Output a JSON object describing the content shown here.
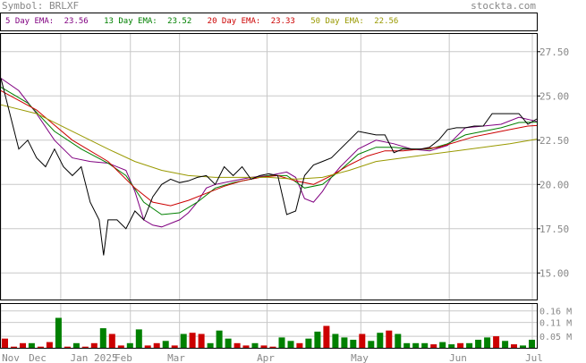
{
  "header": {
    "symbol_label": "Symbol:",
    "symbol": "BRLXF",
    "site": "stockta.com"
  },
  "legend": [
    {
      "label": "5 Day EMA:",
      "value": "23.56",
      "color": "#800080"
    },
    {
      "label": "13 Day EMA:",
      "value": "23.52",
      "color": "#008000"
    },
    {
      "label": "20 Day EMA:",
      "value": "23.33",
      "color": "#cc0000"
    },
    {
      "label": "50 Day EMA:",
      "value": "22.56",
      "color": "#999900"
    }
  ],
  "chart_data": {
    "type": "line",
    "price_axis": {
      "ylim": [
        13.5,
        28.5
      ],
      "ticks": [
        "27.50",
        "25.00",
        "22.50",
        "20.00",
        "17.50",
        "15.00"
      ]
    },
    "volume_axis": {
      "ylim": [
        0,
        0.19
      ],
      "ticks": [
        "0.16 M",
        "0.11 M",
        "0.05 M"
      ]
    },
    "x_labels": [
      "Nov",
      "Dec",
      "Jan 2025",
      "Feb",
      "Mar",
      "Apr",
      "May",
      "Jun",
      "Jul"
    ],
    "grid": true,
    "series": [
      {
        "name": "5 Day EMA",
        "color": "#800080",
        "points": [
          [
            0,
            26
          ],
          [
            2,
            25.3
          ],
          [
            4,
            24
          ],
          [
            6,
            22.5
          ],
          [
            8,
            21.5
          ],
          [
            10,
            21.3
          ],
          [
            12,
            21.2
          ],
          [
            14,
            20.8
          ],
          [
            15,
            19.6
          ],
          [
            16,
            18
          ],
          [
            17,
            17.7
          ],
          [
            18,
            17.6
          ],
          [
            19,
            17.8
          ],
          [
            20,
            18
          ],
          [
            21,
            18.4
          ],
          [
            22,
            19
          ],
          [
            23,
            19.8
          ],
          [
            24,
            20
          ],
          [
            26,
            20.2
          ],
          [
            28,
            20.4
          ],
          [
            30,
            20.5
          ],
          [
            32,
            20.7
          ],
          [
            33,
            20.4
          ],
          [
            34,
            19.2
          ],
          [
            35,
            19
          ],
          [
            36,
            19.6
          ],
          [
            37,
            20.4
          ],
          [
            38,
            21
          ],
          [
            40,
            22
          ],
          [
            42,
            22.5
          ],
          [
            44,
            22.3
          ],
          [
            46,
            22
          ],
          [
            48,
            21.9
          ],
          [
            50,
            22.2
          ],
          [
            52,
            23.2
          ],
          [
            54,
            23.3
          ],
          [
            56,
            23.4
          ],
          [
            58,
            23.8
          ],
          [
            60,
            23.56
          ]
        ]
      },
      {
        "name": "13 Day EMA",
        "color": "#008000",
        "points": [
          [
            0,
            25.5
          ],
          [
            3,
            24.6
          ],
          [
            6,
            23
          ],
          [
            9,
            22
          ],
          [
            12,
            21.2
          ],
          [
            14,
            20.5
          ],
          [
            16,
            19
          ],
          [
            18,
            18.3
          ],
          [
            20,
            18.4
          ],
          [
            22,
            19
          ],
          [
            24,
            19.8
          ],
          [
            26,
            20.1
          ],
          [
            28,
            20.3
          ],
          [
            30,
            20.5
          ],
          [
            32,
            20.5
          ],
          [
            34,
            19.8
          ],
          [
            36,
            20
          ],
          [
            38,
            20.8
          ],
          [
            40,
            21.7
          ],
          [
            42,
            22.1
          ],
          [
            44,
            22.1
          ],
          [
            46,
            22
          ],
          [
            48,
            22
          ],
          [
            50,
            22.3
          ],
          [
            52,
            22.8
          ],
          [
            54,
            23
          ],
          [
            56,
            23.2
          ],
          [
            58,
            23.5
          ],
          [
            60,
            23.52
          ]
        ]
      },
      {
        "name": "20 Day EMA",
        "color": "#cc0000",
        "points": [
          [
            0,
            25.3
          ],
          [
            4,
            24.2
          ],
          [
            8,
            22.5
          ],
          [
            12,
            21.3
          ],
          [
            15,
            19.8
          ],
          [
            17,
            19
          ],
          [
            19,
            18.8
          ],
          [
            21,
            19.1
          ],
          [
            23,
            19.5
          ],
          [
            25,
            19.9
          ],
          [
            27,
            20.2
          ],
          [
            29,
            20.4
          ],
          [
            31,
            20.5
          ],
          [
            33,
            20.2
          ],
          [
            35,
            20
          ],
          [
            37,
            20.5
          ],
          [
            39,
            21.1
          ],
          [
            41,
            21.6
          ],
          [
            43,
            21.9
          ],
          [
            45,
            21.9
          ],
          [
            47,
            22
          ],
          [
            49,
            22.1
          ],
          [
            51,
            22.4
          ],
          [
            53,
            22.7
          ],
          [
            55,
            22.9
          ],
          [
            57,
            23.1
          ],
          [
            59,
            23.3
          ],
          [
            60,
            23.33
          ]
        ]
      },
      {
        "name": "50 Day EMA",
        "color": "#999900",
        "points": [
          [
            0,
            24.5
          ],
          [
            4,
            24
          ],
          [
            8,
            23
          ],
          [
            12,
            22
          ],
          [
            15,
            21.3
          ],
          [
            18,
            20.8
          ],
          [
            21,
            20.5
          ],
          [
            24,
            20.4
          ],
          [
            27,
            20.4
          ],
          [
            30,
            20.4
          ],
          [
            33,
            20.3
          ],
          [
            36,
            20.4
          ],
          [
            39,
            20.8
          ],
          [
            42,
            21.3
          ],
          [
            45,
            21.5
          ],
          [
            48,
            21.7
          ],
          [
            51,
            21.9
          ],
          [
            54,
            22.1
          ],
          [
            57,
            22.3
          ],
          [
            60,
            22.56
          ]
        ]
      },
      {
        "name": "Price",
        "color": "#000000",
        "points": [
          [
            0,
            26
          ],
          [
            1,
            24
          ],
          [
            2,
            22
          ],
          [
            3,
            22.5
          ],
          [
            4,
            21.5
          ],
          [
            5,
            21
          ],
          [
            6,
            22
          ],
          [
            7,
            21
          ],
          [
            8,
            20.5
          ],
          [
            9,
            21
          ],
          [
            10,
            19
          ],
          [
            11,
            18
          ],
          [
            11.5,
            16
          ],
          [
            12,
            18
          ],
          [
            13,
            18
          ],
          [
            14,
            17.5
          ],
          [
            15,
            18.5
          ],
          [
            16,
            18
          ],
          [
            17,
            19.3
          ],
          [
            18,
            20
          ],
          [
            19,
            20.3
          ],
          [
            20,
            20.1
          ],
          [
            21,
            20.2
          ],
          [
            22,
            20.4
          ],
          [
            23,
            20.5
          ],
          [
            24,
            20
          ],
          [
            25,
            21
          ],
          [
            26,
            20.5
          ],
          [
            27,
            21
          ],
          [
            28,
            20.3
          ],
          [
            29,
            20.5
          ],
          [
            30,
            20.6
          ],
          [
            31,
            20.5
          ],
          [
            32,
            18.3
          ],
          [
            33,
            18.5
          ],
          [
            34,
            20.5
          ],
          [
            35,
            21.1
          ],
          [
            36,
            21.3
          ],
          [
            37,
            21.5
          ],
          [
            38,
            22
          ],
          [
            39,
            22.5
          ],
          [
            40,
            23
          ],
          [
            41,
            22.9
          ],
          [
            42,
            22.8
          ],
          [
            43,
            22.8
          ],
          [
            44,
            21.8
          ],
          [
            45,
            22
          ],
          [
            46,
            22
          ],
          [
            47,
            22
          ],
          [
            48,
            22.1
          ],
          [
            49,
            22.5
          ],
          [
            50,
            23.1
          ],
          [
            51,
            23.2
          ],
          [
            52,
            23.2
          ],
          [
            53,
            23.3
          ],
          [
            54,
            23.3
          ],
          [
            55,
            24
          ],
          [
            56,
            24
          ],
          [
            57,
            24
          ],
          [
            58,
            24
          ],
          [
            59,
            23.4
          ],
          [
            60,
            23.7
          ]
        ]
      }
    ],
    "volume": [
      {
        "v": 0.04,
        "c": "#cc0000"
      },
      {
        "v": 0.005,
        "c": "#cc0000"
      },
      {
        "v": 0.02,
        "c": "#cc0000"
      },
      {
        "v": 0.02,
        "c": "#008000"
      },
      {
        "v": 0.005,
        "c": "#cc0000"
      },
      {
        "v": 0.025,
        "c": "#cc0000"
      },
      {
        "v": 0.13,
        "c": "#008000"
      },
      {
        "v": 0.005,
        "c": "#cc0000"
      },
      {
        "v": 0.02,
        "c": "#008000"
      },
      {
        "v": 0.005,
        "c": "#cc0000"
      },
      {
        "v": 0.02,
        "c": "#cc0000"
      },
      {
        "v": 0.085,
        "c": "#008000"
      },
      {
        "v": 0.06,
        "c": "#cc0000"
      },
      {
        "v": 0.01,
        "c": "#cc0000"
      },
      {
        "v": 0.02,
        "c": "#008000"
      },
      {
        "v": 0.08,
        "c": "#008000"
      },
      {
        "v": 0.01,
        "c": "#cc0000"
      },
      {
        "v": 0.02,
        "c": "#cc0000"
      },
      {
        "v": 0.03,
        "c": "#008000"
      },
      {
        "v": 0.01,
        "c": "#cc0000"
      },
      {
        "v": 0.06,
        "c": "#008000"
      },
      {
        "v": 0.065,
        "c": "#cc0000"
      },
      {
        "v": 0.06,
        "c": "#cc0000"
      },
      {
        "v": 0.02,
        "c": "#008000"
      },
      {
        "v": 0.075,
        "c": "#008000"
      },
      {
        "v": 0.04,
        "c": "#008000"
      },
      {
        "v": 0.02,
        "c": "#cc0000"
      },
      {
        "v": 0.01,
        "c": "#cc0000"
      },
      {
        "v": 0.02,
        "c": "#008000"
      },
      {
        "v": 0.01,
        "c": "#cc0000"
      },
      {
        "v": 0.005,
        "c": "#cc0000"
      },
      {
        "v": 0.045,
        "c": "#008000"
      },
      {
        "v": 0.03,
        "c": "#008000"
      },
      {
        "v": 0.02,
        "c": "#cc0000"
      },
      {
        "v": 0.04,
        "c": "#008000"
      },
      {
        "v": 0.07,
        "c": "#008000"
      },
      {
        "v": 0.095,
        "c": "#cc0000"
      },
      {
        "v": 0.06,
        "c": "#008000"
      },
      {
        "v": 0.045,
        "c": "#008000"
      },
      {
        "v": 0.035,
        "c": "#008000"
      },
      {
        "v": 0.06,
        "c": "#cc0000"
      },
      {
        "v": 0.03,
        "c": "#008000"
      },
      {
        "v": 0.065,
        "c": "#008000"
      },
      {
        "v": 0.075,
        "c": "#cc0000"
      },
      {
        "v": 0.06,
        "c": "#008000"
      },
      {
        "v": 0.02,
        "c": "#008000"
      },
      {
        "v": 0.02,
        "c": "#008000"
      },
      {
        "v": 0.02,
        "c": "#008000"
      },
      {
        "v": 0.015,
        "c": "#cc0000"
      },
      {
        "v": 0.025,
        "c": "#008000"
      },
      {
        "v": 0.015,
        "c": "#008000"
      },
      {
        "v": 0.02,
        "c": "#cc0000"
      },
      {
        "v": 0.02,
        "c": "#008000"
      },
      {
        "v": 0.035,
        "c": "#008000"
      },
      {
        "v": 0.045,
        "c": "#008000"
      },
      {
        "v": 0.05,
        "c": "#cc0000"
      },
      {
        "v": 0.03,
        "c": "#008000"
      },
      {
        "v": 0.015,
        "c": "#cc0000"
      },
      {
        "v": 0.01,
        "c": "#008000"
      },
      {
        "v": 0.035,
        "c": "#008000"
      }
    ]
  }
}
